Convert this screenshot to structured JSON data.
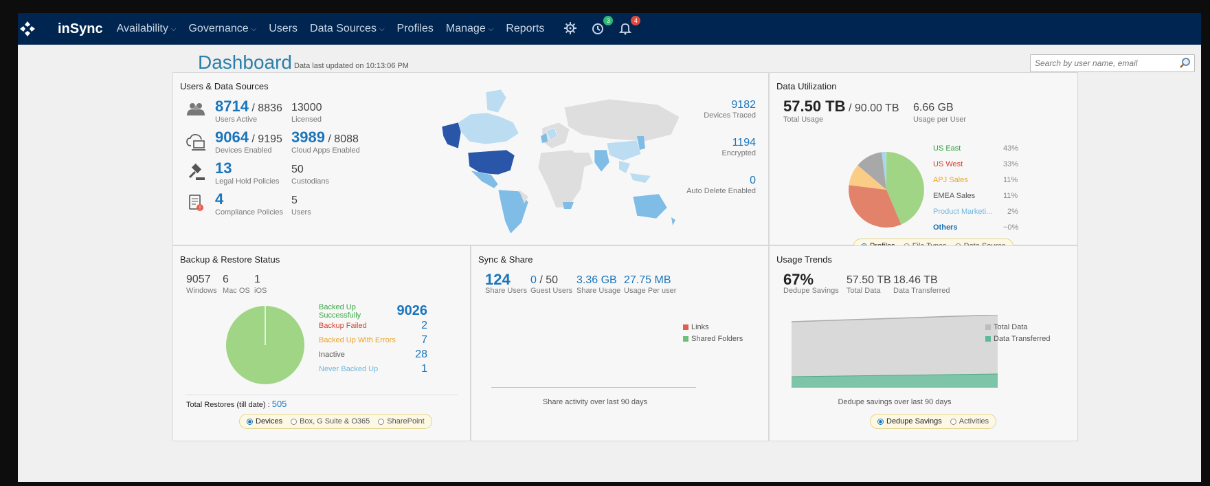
{
  "nav": {
    "brand": "inSync",
    "items": [
      {
        "label": "Availability",
        "dropdown": true
      },
      {
        "label": "Governance",
        "dropdown": true
      },
      {
        "label": "Users",
        "dropdown": false
      },
      {
        "label": "Data Sources",
        "dropdown": true
      },
      {
        "label": "Profiles",
        "dropdown": false
      },
      {
        "label": "Manage",
        "dropdown": true
      },
      {
        "label": "Reports",
        "dropdown": false
      }
    ],
    "activity_badge": "3",
    "notification_badge": "4",
    "badge_colors": {
      "activity": "#2eb872",
      "notification": "#e0493b"
    }
  },
  "header": {
    "title": "Dashboard",
    "updated": "Data last updated on 10:13:06 PM",
    "search_placeholder": "Search by user name, email"
  },
  "users_sources": {
    "title": "Users & Data Sources",
    "users_active": "8714",
    "users_total": "/ 8836",
    "users_active_label": "Users Active",
    "licensed": "13000",
    "licensed_label": "Licensed",
    "devices_enabled": "9064",
    "devices_total": "/ 9195",
    "devices_enabled_label": "Devices Enabled",
    "cloud_apps": "3989",
    "cloud_apps_total": "/ 8088",
    "cloud_apps_label": "Cloud Apps Enabled",
    "legal_hold": "13",
    "legal_hold_label": "Legal Hold Policies",
    "custodians": "50",
    "custodians_label": "Custodians",
    "compliance": "4",
    "compliance_label": "Compliance Policies",
    "comp_users": "5",
    "comp_users_label": "Users",
    "devices_traced": "9182",
    "devices_traced_label": "Devices Traced",
    "encrypted": "1194",
    "encrypted_label": "Encrypted",
    "auto_delete": "0",
    "auto_delete_label": "Auto Delete Enabled"
  },
  "utilization": {
    "title": "Data Utilization",
    "total_usage": "57.50 TB",
    "total_capacity": "/ 90.00 TB",
    "total_usage_label": "Total Usage",
    "per_user": "6.66 GB",
    "per_user_label": "Usage per User",
    "legend": [
      {
        "label": "US East",
        "pct": "43%",
        "color": "#2e9e3c"
      },
      {
        "label": "US West",
        "pct": "33%",
        "color": "#d6402f"
      },
      {
        "label": "APJ Sales",
        "pct": "11%",
        "color": "#e9a52a"
      },
      {
        "label": "EMEA Sales",
        "pct": "11%",
        "color": "#555555"
      },
      {
        "label": "Product Marketi...",
        "pct": "2%",
        "color": "#6fb7e0"
      },
      {
        "label": "Others",
        "pct": "~0%",
        "color": "#1a6eb0"
      }
    ],
    "toggle": [
      "Profiles",
      "File Types",
      "Data Source"
    ],
    "toggle_selected": "Profiles"
  },
  "backup": {
    "title": "Backup & Restore Status",
    "windows": "9057",
    "windows_label": "Windows",
    "mac": "6",
    "mac_label": "Mac OS",
    "ios": "1",
    "ios_label": "iOS",
    "statuses": [
      {
        "label": "Backed Up Successfully",
        "value": "9026",
        "color": "#3aa844"
      },
      {
        "label": "Backup Failed",
        "value": "2",
        "color": "#d6402f"
      },
      {
        "label": "Backed Up With Errors",
        "value": "7",
        "color": "#e9a52a"
      },
      {
        "label": "Inactive",
        "value": "28",
        "color": "#555555"
      },
      {
        "label": "Never Backed Up",
        "value": "1",
        "color": "#6fb7e0"
      }
    ],
    "restores_label": "Total Restores (till date) :",
    "restores": "505",
    "toggle": [
      "Devices",
      "Box, G Suite & O365",
      "SharePoint"
    ],
    "toggle_selected": "Devices"
  },
  "sync": {
    "title": "Sync & Share",
    "share_users": "124",
    "share_users_label": "Share Users",
    "guest_users": "0",
    "guest_total": "/ 50",
    "guest_users_label": "Guest Users",
    "share_usage": "3.36 GB",
    "share_usage_label": "Share Usage",
    "usage_per_user": "27.75 MB",
    "usage_per_user_label": "Usage Per user",
    "legend": [
      {
        "label": "Links",
        "color": "#e0604d"
      },
      {
        "label": "Shared Folders",
        "color": "#6cc07a"
      }
    ],
    "caption": "Share activity over last 90 days"
  },
  "trends": {
    "title": "Usage Trends",
    "dedupe": "67%",
    "dedupe_label": "Dedupe Savings",
    "total_data": "57.50 TB",
    "total_data_label": "Total Data",
    "transferred": "18.46 TB",
    "transferred_label": "Data Transferred",
    "legend": [
      {
        "label": "Total Data",
        "color": "#bdbdbd"
      },
      {
        "label": "Data Transferred",
        "color": "#5fb89c"
      }
    ],
    "caption": "Dedupe savings over last 90 days",
    "toggle": [
      "Dedupe Savings",
      "Activities"
    ],
    "toggle_selected": "Dedupe Savings"
  }
}
